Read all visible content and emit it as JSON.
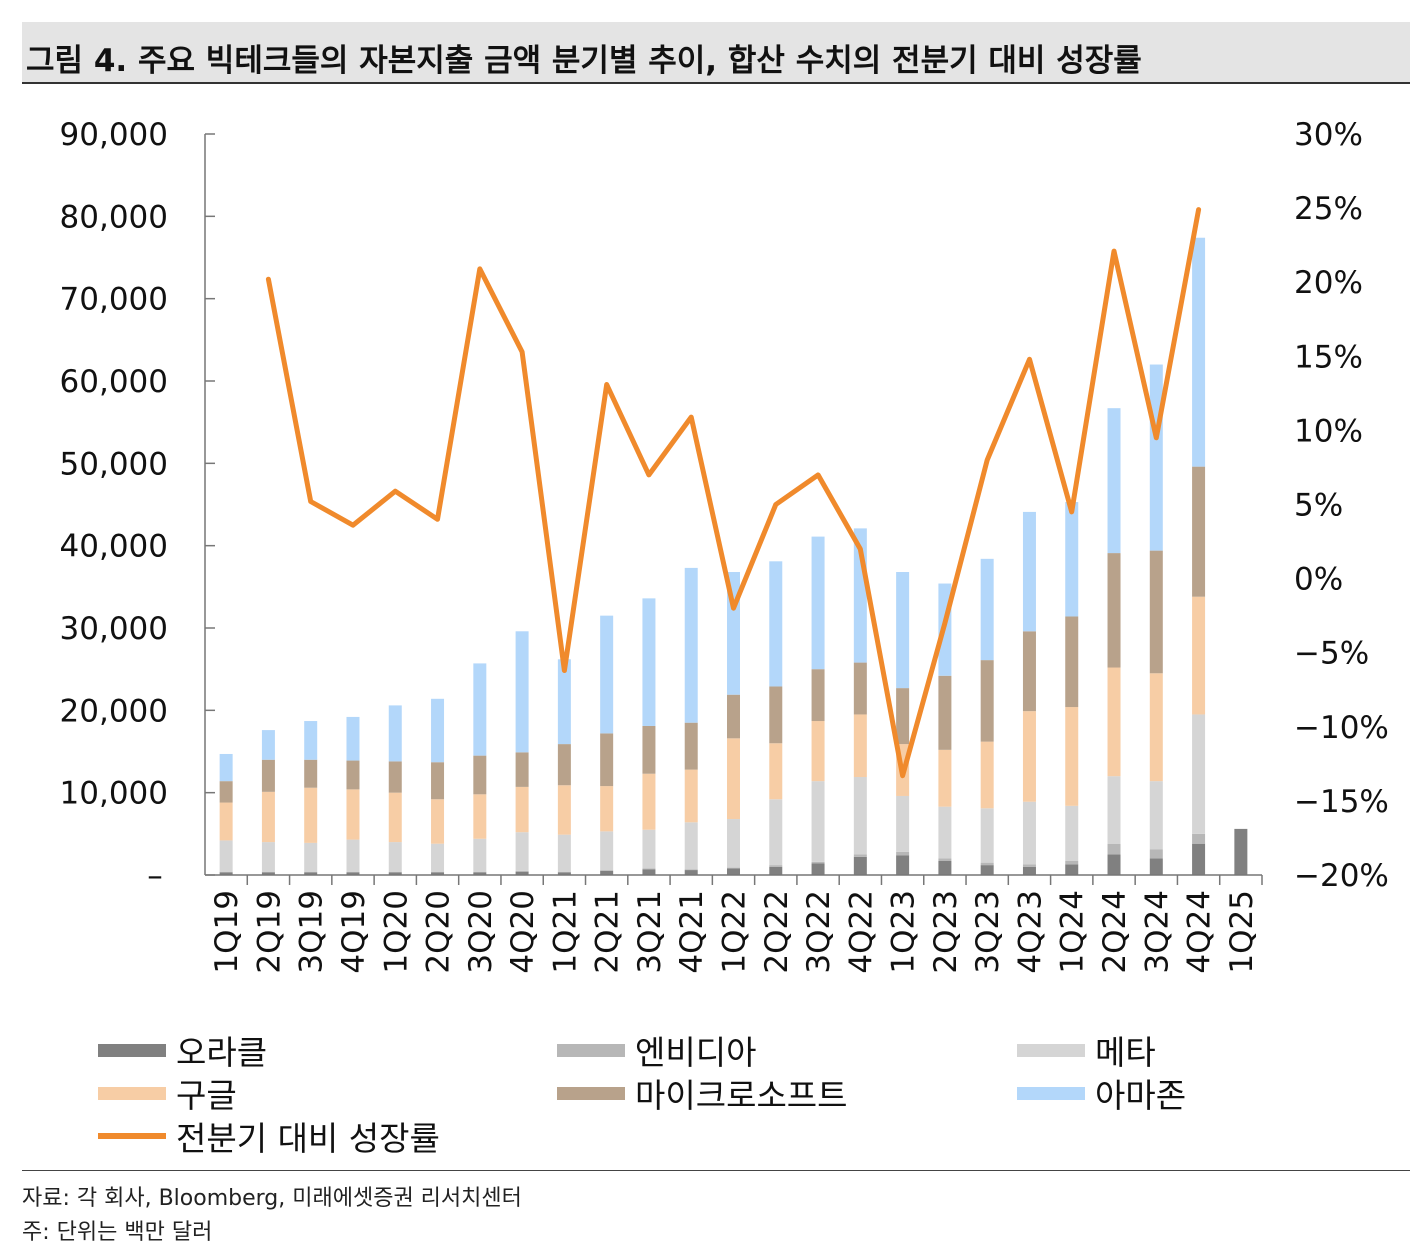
{
  "title": "그림 4. 주요 빅테크들의 자본지출 금액 분기별 추이, 합산 수치의 전분기 대비 성장률",
  "chart_data": {
    "type": "bar",
    "stacked": true,
    "categories": [
      "1Q19",
      "2Q19",
      "3Q19",
      "4Q19",
      "1Q20",
      "2Q20",
      "3Q20",
      "4Q20",
      "1Q21",
      "2Q21",
      "3Q21",
      "4Q21",
      "1Q22",
      "2Q22",
      "3Q22",
      "4Q22",
      "1Q23",
      "2Q23",
      "3Q23",
      "4Q23",
      "1Q24",
      "2Q24",
      "3Q24",
      "4Q24",
      "1Q25"
    ],
    "ylim": [
      0,
      90000
    ],
    "y_ticks": [
      "–",
      "10,000",
      "20,000",
      "30,000",
      "40,000",
      "50,000",
      "60,000",
      "70,000",
      "80,000",
      "90,000"
    ],
    "y2lim": [
      -20,
      30
    ],
    "y2_ticks": [
      "−20%",
      "−15%",
      "−10%",
      "−5%",
      "0%",
      "5%",
      "10%",
      "15%",
      "20%",
      "25%",
      "30%"
    ],
    "series": [
      {
        "name": "오라클",
        "color": "#808080",
        "axis": "left",
        "values": [
          300,
          300,
          300,
          300,
          300,
          300,
          300,
          400,
          300,
          500,
          700,
          600,
          800,
          1000,
          1400,
          2200,
          2400,
          1700,
          1200,
          1000,
          1300,
          2500,
          2000,
          3800,
          5600
        ]
      },
      {
        "name": "엔비디아",
        "color": "#b7b7b7",
        "axis": "left",
        "values": [
          100,
          100,
          100,
          100,
          100,
          100,
          100,
          100,
          100,
          100,
          100,
          100,
          100,
          200,
          200,
          300,
          400,
          300,
          300,
          300,
          400,
          1300,
          1100,
          1200,
          0
        ]
      },
      {
        "name": "메타",
        "color": "#d5d5d5",
        "axis": "left",
        "values": [
          3800,
          3600,
          3500,
          3900,
          3600,
          3400,
          4000,
          4700,
          4500,
          4700,
          4700,
          5700,
          5900,
          8000,
          9800,
          9400,
          6800,
          6300,
          6600,
          7600,
          6700,
          8200,
          8300,
          14500,
          0
        ]
      },
      {
        "name": "구글",
        "color": "#f7cda5",
        "axis": "left",
        "values": [
          4600,
          6100,
          6700,
          6100,
          6000,
          5400,
          5400,
          5500,
          6000,
          5500,
          6800,
          6400,
          9800,
          6800,
          7300,
          7600,
          6300,
          6900,
          8100,
          11000,
          12000,
          13200,
          13100,
          14300,
          0
        ]
      },
      {
        "name": "마이크로소프트",
        "color": "#b8a28b",
        "axis": "left",
        "values": [
          2600,
          3900,
          3400,
          3500,
          3800,
          4500,
          4700,
          4200,
          5000,
          6400,
          5800,
          5700,
          5300,
          6900,
          6300,
          6300,
          6800,
          9000,
          9900,
          9700,
          11000,
          13900,
          14900,
          15800,
          0
        ]
      },
      {
        "name": "아마존",
        "color": "#b3d7fa",
        "axis": "left",
        "values": [
          3300,
          3600,
          4700,
          5300,
          6800,
          7700,
          11200,
          14700,
          10300,
          14300,
          15500,
          18800,
          14900,
          15200,
          16100,
          16300,
          14100,
          11200,
          12300,
          14500,
          13900,
          17600,
          22600,
          27800,
          0
        ]
      },
      {
        "name": "전분기 대비 성장률",
        "color": "#f08a2c",
        "axis": "right",
        "type": "line",
        "values": [
          null,
          20.2,
          5.2,
          3.6,
          5.9,
          4.0,
          20.9,
          15.3,
          -6.2,
          13.1,
          7.0,
          10.9,
          -2.0,
          5.0,
          7.0,
          2.0,
          -13.3,
          -3.0,
          8.0,
          14.8,
          4.5,
          22.1,
          9.5,
          24.9,
          null
        ]
      }
    ]
  },
  "legend": {
    "oracle": "오라클",
    "nvidia": "엔비디아",
    "meta": "메타",
    "google": "구글",
    "microsoft": "마이크로소프트",
    "amazon": "아마존",
    "growth": "전분기 대비 성장률"
  },
  "source": "자료: 각 회사, Bloomberg, 미래에셋증권 리서치센터",
  "note": "주: 단위는 백만 달러"
}
